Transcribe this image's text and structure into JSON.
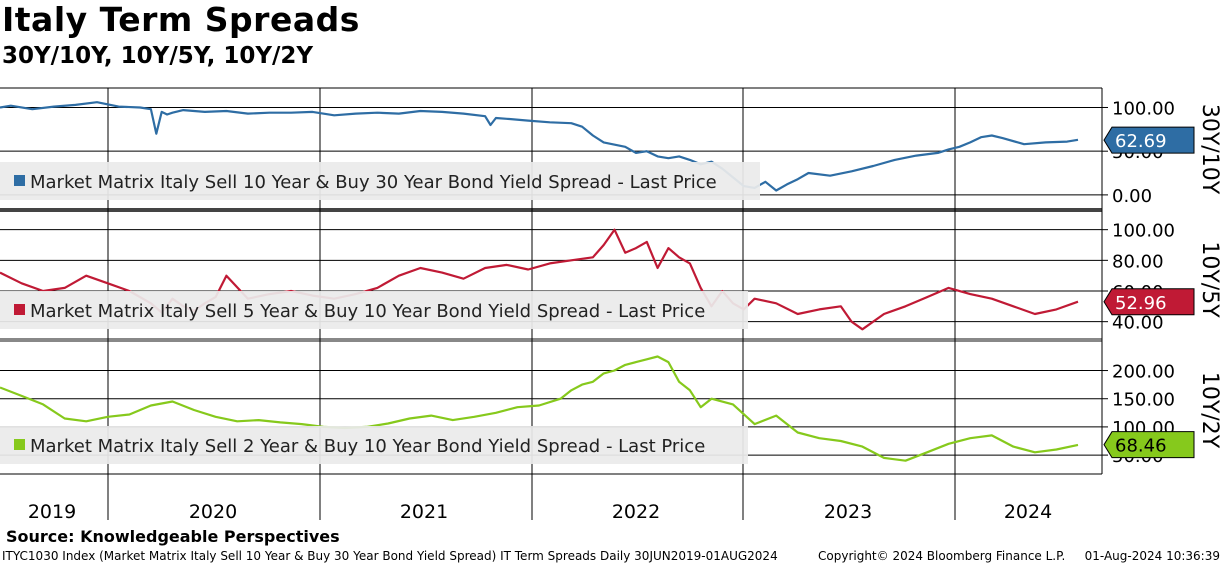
{
  "header": {
    "title": "Italy Term Spreads",
    "subtitle": "30Y/10Y, 10Y/5Y, 10Y/2Y"
  },
  "footer": {
    "source": "Source: Knowledgeable Perspectives",
    "ticker_line": "ITYC1030 Index (Market Matrix Italy Sell 10 Year & Buy 30 Year Bond Yield Spread) IT Term Spreads  Daily 30JUN2019-01AUG2024",
    "copyright": "Copyright© 2024 Bloomberg Finance L.P.",
    "timestamp": "01-Aug-2024 10:36:39"
  },
  "chart_data": {
    "type": "line",
    "x_axis": {
      "labels": [
        "2019",
        "2020",
        "2021",
        "2022",
        "2023",
        "2024"
      ],
      "range": [
        "30JUN2019",
        "01AUG2024"
      ]
    },
    "panels": [
      {
        "name": "30Y/10Y",
        "legend": "Market Matrix Italy Sell 10 Year & Buy 30 Year Bond Yield Spread - Last Price",
        "color": "#2e6da4",
        "ylim": [
          -15,
          120
        ],
        "yticks": [
          0,
          50,
          100
        ],
        "ytick_labels": [
          "0.00",
          "50.00",
          "100.00"
        ],
        "last_value": 62.69,
        "last_label": "62.69",
        "series": {
          "t": [
            0.0,
            0.01,
            0.03,
            0.05,
            0.07,
            0.09,
            0.11,
            0.13,
            0.14,
            0.145,
            0.15,
            0.155,
            0.16,
            0.17,
            0.19,
            0.21,
            0.23,
            0.25,
            0.27,
            0.29,
            0.31,
            0.33,
            0.35,
            0.37,
            0.39,
            0.41,
            0.43,
            0.45,
            0.455,
            0.46,
            0.47,
            0.49,
            0.51,
            0.53,
            0.54,
            0.55,
            0.56,
            0.58,
            0.59,
            0.6,
            0.61,
            0.62,
            0.63,
            0.64,
            0.65,
            0.66,
            0.67,
            0.68,
            0.69,
            0.7,
            0.71,
            0.72,
            0.73,
            0.74,
            0.75,
            0.77,
            0.79,
            0.81,
            0.83,
            0.85,
            0.87,
            0.88,
            0.89,
            0.9,
            0.91,
            0.92,
            0.93,
            0.95,
            0.97,
            0.99,
            1.0
          ],
          "v": [
            100,
            102,
            98,
            101,
            103,
            106,
            101,
            100,
            98,
            70,
            95,
            92,
            94,
            97,
            95,
            96,
            93,
            94,
            94,
            95,
            91,
            93,
            94,
            93,
            96,
            95,
            93,
            90,
            80,
            88,
            87,
            85,
            83,
            82,
            78,
            68,
            60,
            55,
            48,
            50,
            44,
            42,
            44,
            40,
            35,
            38,
            30,
            20,
            10,
            8,
            15,
            5,
            12,
            18,
            25,
            22,
            27,
            33,
            40,
            45,
            48,
            52,
            55,
            60,
            66,
            68,
            65,
            58,
            60,
            61,
            63
          ]
        }
      },
      {
        "name": "10Y/5Y",
        "legend": "Market Matrix Italy Sell 5 Year & Buy 10 Year Bond Yield Spread - Last Price",
        "color": "#c01a35",
        "ylim": [
          30,
          105
        ],
        "yticks": [
          40,
          60,
          80,
          100
        ],
        "ytick_labels": [
          "40.00",
          "60.00",
          "80.00",
          "100.00"
        ],
        "last_value": 52.96,
        "last_label": "52.96",
        "series": {
          "t": [
            0.0,
            0.02,
            0.04,
            0.06,
            0.08,
            0.1,
            0.12,
            0.14,
            0.15,
            0.16,
            0.17,
            0.18,
            0.19,
            0.2,
            0.21,
            0.23,
            0.25,
            0.27,
            0.29,
            0.31,
            0.33,
            0.35,
            0.37,
            0.39,
            0.41,
            0.43,
            0.45,
            0.47,
            0.49,
            0.51,
            0.53,
            0.55,
            0.56,
            0.57,
            0.58,
            0.59,
            0.6,
            0.61,
            0.62,
            0.63,
            0.64,
            0.65,
            0.66,
            0.67,
            0.68,
            0.69,
            0.7,
            0.72,
            0.74,
            0.76,
            0.78,
            0.79,
            0.8,
            0.82,
            0.84,
            0.86,
            0.88,
            0.9,
            0.92,
            0.94,
            0.96,
            0.98,
            1.0
          ],
          "v": [
            72,
            65,
            60,
            62,
            70,
            65,
            60,
            52,
            46,
            55,
            50,
            47,
            52,
            56,
            70,
            55,
            58,
            60,
            57,
            55,
            58,
            62,
            70,
            75,
            72,
            68,
            75,
            77,
            74,
            78,
            80,
            82,
            90,
            100,
            85,
            88,
            92,
            75,
            88,
            82,
            78,
            62,
            50,
            60,
            52,
            48,
            55,
            52,
            45,
            48,
            50,
            40,
            35,
            45,
            50,
            56,
            62,
            58,
            55,
            50,
            45,
            48,
            53
          ]
        }
      },
      {
        "name": "10Y/2Y",
        "legend": "Market Matrix Italy Sell 2 Year & Buy 10 Year Bond Yield Spread - Last Price",
        "color": "#86c91c",
        "ylim": [
          20,
          240
        ],
        "yticks": [
          50,
          100,
          150,
          200
        ],
        "ytick_labels": [
          "50.00",
          "100.00",
          "150.00",
          "200.00"
        ],
        "last_value": 68.46,
        "last_label": "68.46",
        "series": {
          "t": [
            0.0,
            0.02,
            0.04,
            0.06,
            0.08,
            0.1,
            0.12,
            0.14,
            0.16,
            0.18,
            0.2,
            0.22,
            0.24,
            0.26,
            0.28,
            0.3,
            0.32,
            0.34,
            0.36,
            0.38,
            0.4,
            0.42,
            0.44,
            0.46,
            0.48,
            0.5,
            0.52,
            0.53,
            0.54,
            0.55,
            0.56,
            0.57,
            0.58,
            0.59,
            0.6,
            0.61,
            0.62,
            0.63,
            0.64,
            0.65,
            0.66,
            0.68,
            0.7,
            0.72,
            0.74,
            0.76,
            0.78,
            0.8,
            0.82,
            0.84,
            0.86,
            0.88,
            0.9,
            0.92,
            0.94,
            0.96,
            0.98,
            1.0
          ],
          "v": [
            170,
            155,
            140,
            115,
            110,
            118,
            122,
            138,
            145,
            130,
            118,
            110,
            112,
            108,
            105,
            100,
            98,
            100,
            106,
            115,
            120,
            112,
            118,
            125,
            135,
            138,
            150,
            165,
            175,
            180,
            195,
            200,
            210,
            215,
            220,
            225,
            215,
            180,
            165,
            135,
            150,
            140,
            105,
            120,
            90,
            80,
            75,
            65,
            45,
            40,
            55,
            70,
            80,
            85,
            65,
            55,
            60,
            68
          ]
        }
      }
    ]
  }
}
